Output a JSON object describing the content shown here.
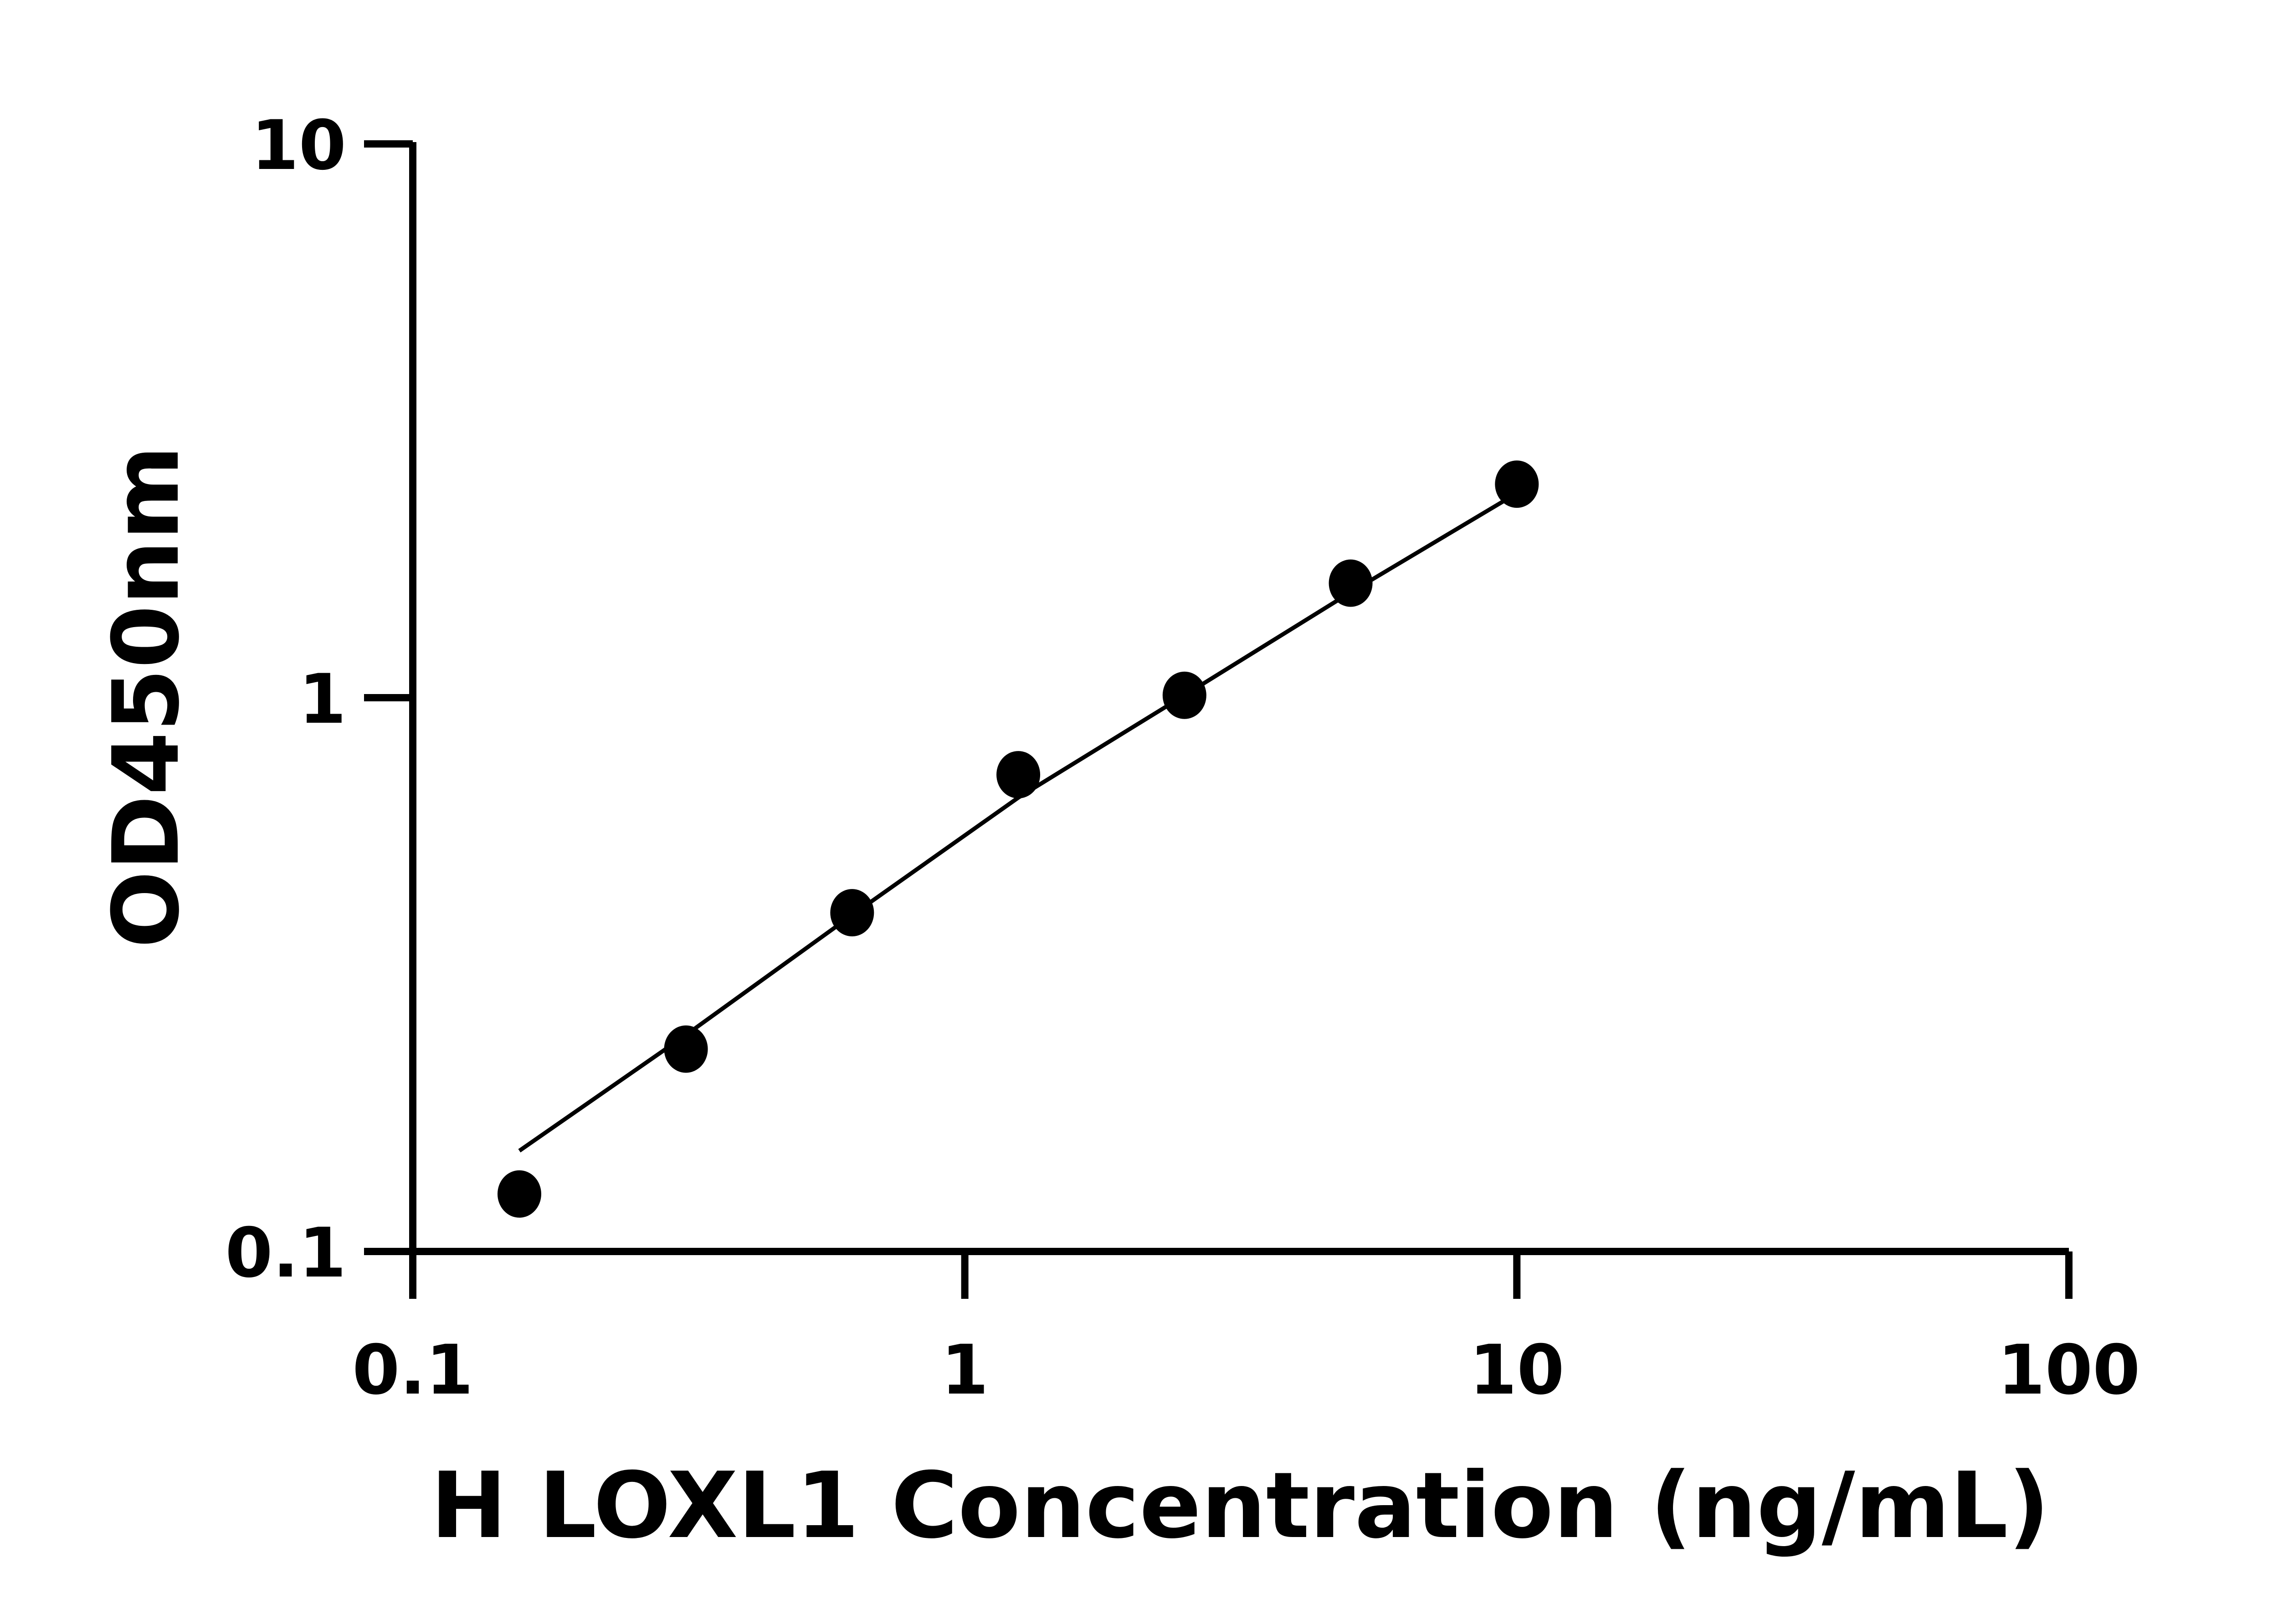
{
  "chart_data": {
    "type": "scatter",
    "xlabel": "H LOXL1 Concentration (ng/mL)",
    "ylabel": "OD450nm",
    "xscale": "log",
    "yscale": "log",
    "xlim": [
      0.1,
      100
    ],
    "ylim": [
      0.1,
      10
    ],
    "xticks": [
      "0.1",
      "1",
      "10",
      "100"
    ],
    "yticks": [
      "0.1",
      "1",
      "10"
    ],
    "grid": false,
    "colors": {
      "points": "#000000",
      "line": "#000000",
      "axes": "#000000"
    },
    "points": [
      {
        "x": 0.156,
        "y": 0.127
      },
      {
        "x": 0.3125,
        "y": 0.232
      },
      {
        "x": 0.625,
        "y": 0.409
      },
      {
        "x": 1.25,
        "y": 0.726
      },
      {
        "x": 2.5,
        "y": 1.01
      },
      {
        "x": 5,
        "y": 1.61
      },
      {
        "x": 10,
        "y": 2.43
      }
    ],
    "fit_line": [
      {
        "x": 0.156,
        "y": 0.152
      },
      {
        "x": 0.3125,
        "y": 0.246
      },
      {
        "x": 0.625,
        "y": 0.405
      },
      {
        "x": 1.25,
        "y": 0.66
      },
      {
        "x": 2.5,
        "y": 1.01
      },
      {
        "x": 5,
        "y": 1.55
      },
      {
        "x": 10,
        "y": 2.34
      }
    ]
  }
}
